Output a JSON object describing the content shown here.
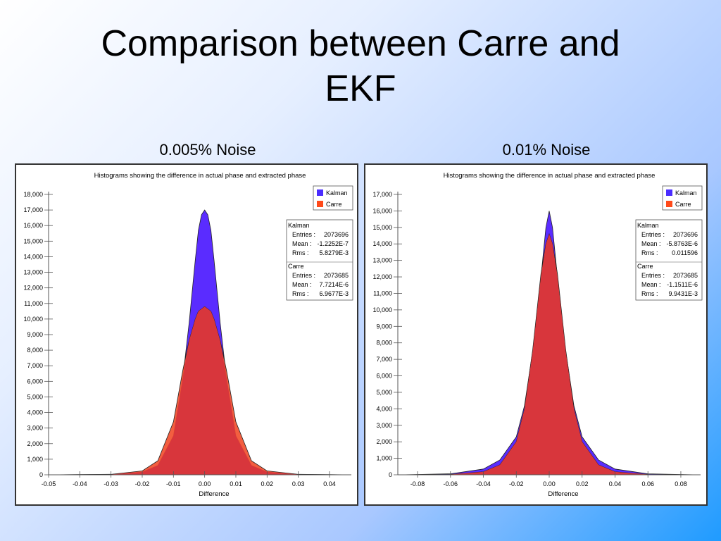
{
  "slide": {
    "title_line1": "Comparison between Carre and",
    "title_line2": "EKF"
  },
  "chart_data": [
    {
      "type": "area",
      "caption": "0.005% Noise",
      "title": "Histograms showing the difference in actual phase and extracted phase",
      "xlabel": "Difference",
      "ylabel": "",
      "xlim": [
        -0.05,
        0.047
      ],
      "ylim": [
        0,
        18000
      ],
      "x_ticks": [
        -0.05,
        -0.04,
        -0.03,
        -0.02,
        -0.01,
        0.0,
        0.01,
        0.02,
        0.03,
        0.04
      ],
      "x_tick_labels": [
        "-0.05",
        "-0.04",
        "-0.03",
        "-0.02",
        "-0.01",
        "0.00",
        "0.01",
        "0.02",
        "0.03",
        "0.04"
      ],
      "y_ticks": [
        0,
        1000,
        2000,
        3000,
        4000,
        5000,
        6000,
        7000,
        8000,
        9000,
        10000,
        11000,
        12000,
        13000,
        14000,
        15000,
        16000,
        17000,
        18000
      ],
      "y_tick_labels": [
        "0",
        "1,000",
        "2,000",
        "3,000",
        "4,000",
        "5,000",
        "6,000",
        "7,000",
        "8,000",
        "9,000",
        "10,000",
        "11,000",
        "12,000",
        "13,000",
        "14,000",
        "15,000",
        "16,000",
        "17,000",
        "18,000"
      ],
      "legend_position": "top-right",
      "series": [
        {
          "name": "Kalman",
          "color": "#5a2cff",
          "x": [
            -0.05,
            -0.03,
            -0.02,
            -0.015,
            -0.01,
            -0.007,
            -0.005,
            -0.003,
            -0.002,
            -0.001,
            0.0,
            0.001,
            0.002,
            0.003,
            0.005,
            0.007,
            0.01,
            0.015,
            0.02,
            0.03,
            0.047
          ],
          "values": [
            0,
            20,
            180,
            600,
            2500,
            6200,
            9700,
            13800,
            15700,
            16700,
            17000,
            16700,
            15700,
            13800,
            9700,
            6200,
            2500,
            600,
            180,
            20,
            0
          ]
        },
        {
          "name": "Carre",
          "color": "#ff4a1a",
          "x": [
            -0.05,
            -0.03,
            -0.02,
            -0.015,
            -0.01,
            -0.007,
            -0.005,
            -0.003,
            -0.002,
            0.0,
            0.002,
            0.003,
            0.005,
            0.007,
            0.01,
            0.015,
            0.02,
            0.03,
            0.047
          ],
          "values": [
            0,
            30,
            250,
            900,
            3400,
            6700,
            8600,
            10000,
            10500,
            10800,
            10500,
            10000,
            8600,
            6700,
            3400,
            900,
            250,
            30,
            0
          ]
        }
      ],
      "stats": [
        {
          "name": "Kalman",
          "rows": [
            {
              "label": "Entries :",
              "value": "2073696"
            },
            {
              "label": "Mean :",
              "value": "-1.2252E-7"
            },
            {
              "label": "Rms :",
              "value": "5.8279E-3"
            }
          ]
        },
        {
          "name": "Carre",
          "rows": [
            {
              "label": "Entries :",
              "value": "2073685"
            },
            {
              "label": "Mean :",
              "value": "7.7214E-6"
            },
            {
              "label": "Rms :",
              "value": "6.9677E-3"
            }
          ]
        }
      ]
    },
    {
      "type": "area",
      "caption": "0.01% Noise",
      "title": "Histograms showing the difference in actual phase and extracted phase",
      "xlabel": "Difference",
      "ylabel": "",
      "xlim": [
        -0.092,
        0.092
      ],
      "ylim": [
        0,
        17000
      ],
      "x_ticks": [
        -0.08,
        -0.06,
        -0.04,
        -0.02,
        0.0,
        0.02,
        0.04,
        0.06,
        0.08
      ],
      "x_tick_labels": [
        "-0.08",
        "-0.06",
        "-0.04",
        "-0.02",
        "0.00",
        "0.02",
        "0.04",
        "0.06",
        "0.08"
      ],
      "y_ticks": [
        0,
        1000,
        2000,
        3000,
        4000,
        5000,
        6000,
        7000,
        8000,
        9000,
        10000,
        11000,
        12000,
        13000,
        14000,
        15000,
        16000,
        17000
      ],
      "y_tick_labels": [
        "0",
        "1,000",
        "2,000",
        "3,000",
        "4,000",
        "5,000",
        "6,000",
        "7,000",
        "8,000",
        "9,000",
        "10,000",
        "11,000",
        "12,000",
        "13,000",
        "14,000",
        "15,000",
        "16,000",
        "17,000"
      ],
      "legend_position": "top-right",
      "series": [
        {
          "name": "Kalman",
          "color": "#5a2cff",
          "x": [
            -0.09,
            -0.06,
            -0.04,
            -0.03,
            -0.02,
            -0.015,
            -0.01,
            -0.005,
            -0.002,
            0.0,
            0.002,
            0.005,
            0.01,
            0.015,
            0.02,
            0.03,
            0.04,
            0.06,
            0.09
          ],
          "values": [
            0,
            60,
            350,
            900,
            2300,
            4200,
            7500,
            12000,
            15000,
            16000,
            15000,
            12000,
            7500,
            4200,
            2300,
            900,
            350,
            60,
            0
          ]
        },
        {
          "name": "Carre",
          "color": "#ff4a1a",
          "x": [
            -0.09,
            -0.06,
            -0.04,
            -0.03,
            -0.02,
            -0.015,
            -0.01,
            -0.005,
            -0.002,
            0.0,
            0.002,
            0.005,
            0.01,
            0.015,
            0.02,
            0.03,
            0.04,
            0.06,
            0.09
          ],
          "values": [
            0,
            20,
            180,
            600,
            2000,
            4000,
            7600,
            12200,
            14000,
            14600,
            14000,
            12200,
            7600,
            4000,
            2000,
            600,
            180,
            20,
            0
          ]
        }
      ],
      "stats": [
        {
          "name": "Kalman",
          "rows": [
            {
              "label": "Entries :",
              "value": "2073696"
            },
            {
              "label": "Mean :",
              "value": "-5.8763E-6"
            },
            {
              "label": "Rms :",
              "value": "0.011596"
            }
          ]
        },
        {
          "name": "Carre",
          "rows": [
            {
              "label": "Entries :",
              "value": "2073685"
            },
            {
              "label": "Mean :",
              "value": "-1.1511E-6"
            },
            {
              "label": "Rms :",
              "value": "9.9431E-3"
            }
          ]
        }
      ]
    }
  ]
}
